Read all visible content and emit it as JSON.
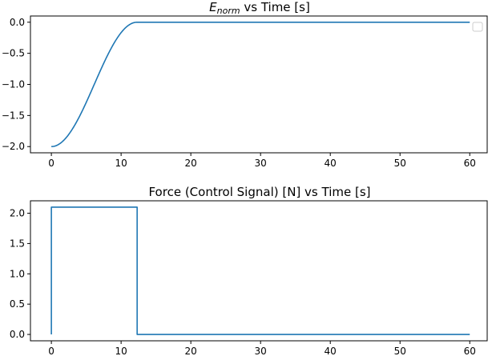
{
  "chart_data": [
    {
      "type": "line",
      "title_main": "E",
      "title_sub": "norm",
      "title_rest": " vs Time [s]",
      "xlim": [
        -3,
        62.5
      ],
      "ylim": [
        -2.1,
        0.1
      ],
      "xticks": [
        0,
        10,
        20,
        30,
        40,
        50,
        60
      ],
      "xtick_labels": [
        "0",
        "10",
        "20",
        "30",
        "40",
        "50",
        "60"
      ],
      "yticks": [
        0.0,
        -0.5,
        -1.0,
        -1.5,
        -2.0
      ],
      "ytick_labels": [
        "0.0",
        "−0.5",
        "−1.0",
        "−1.5",
        "−2.0"
      ],
      "legend": "top-right (empty)",
      "grid": false,
      "color": "#1f77b4",
      "series": [
        {
          "x": [
            0,
            1,
            2,
            3,
            4,
            5,
            6,
            7,
            8,
            9,
            10,
            11,
            12,
            12.3,
            20,
            30,
            40,
            50,
            60
          ],
          "y": [
            -2.0,
            -1.97,
            -1.89,
            -1.75,
            -1.57,
            -1.36,
            -1.12,
            -0.87,
            -0.63,
            -0.41,
            -0.22,
            -0.08,
            -0.01,
            0.0,
            0.0,
            0.0,
            0.0,
            0.0,
            0.0
          ]
        }
      ]
    },
    {
      "type": "line",
      "title": "Force (Control Signal) [N] vs Time [s]",
      "xlim": [
        -3,
        62.5
      ],
      "ylim": [
        -0.105,
        2.205
      ],
      "xticks": [
        0,
        10,
        20,
        30,
        40,
        50,
        60
      ],
      "xtick_labels": [
        "0",
        "10",
        "20",
        "30",
        "40",
        "50",
        "60"
      ],
      "yticks": [
        0.0,
        0.5,
        1.0,
        1.5,
        2.0
      ],
      "ytick_labels": [
        "0.0",
        "0.5",
        "1.0",
        "1.5",
        "2.0"
      ],
      "grid": false,
      "color": "#1f77b4",
      "series": [
        {
          "x": [
            0,
            0,
            12.3,
            12.3,
            60
          ],
          "y": [
            0.0,
            2.1,
            2.1,
            0.0,
            0.0
          ]
        }
      ]
    }
  ]
}
